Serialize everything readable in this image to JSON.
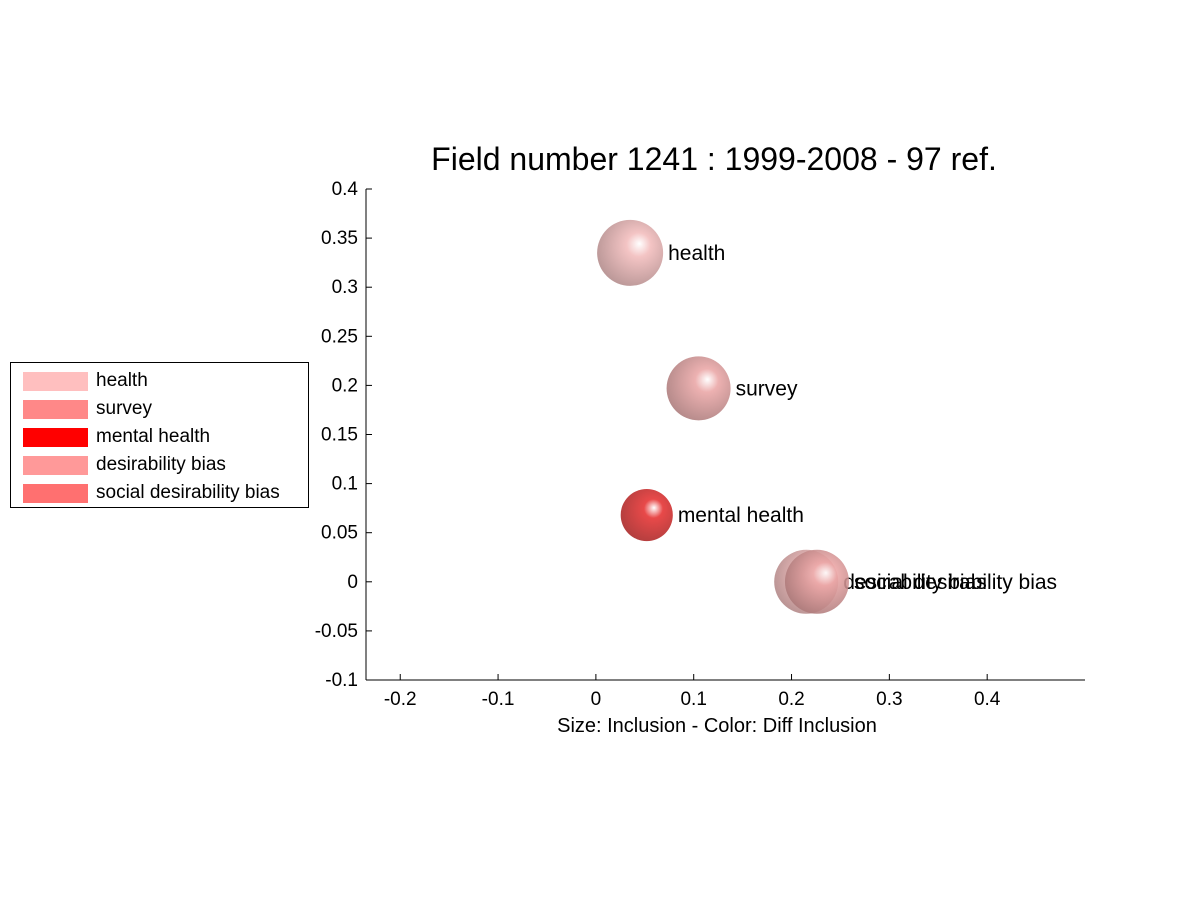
{
  "chart_data": {
    "type": "scatter",
    "title": "Field number 1241 : 1999-2008  - 97 ref.",
    "xlabel": "Size: Inclusion - Color: Diff Inclusion",
    "ylabel": "",
    "xlim": [
      -0.235,
      0.5
    ],
    "ylim": [
      -0.1,
      0.4
    ],
    "xticks": [
      -0.2,
      -0.1,
      0,
      0.1,
      0.2,
      0.3,
      0.4
    ],
    "xtick_labels": [
      "-0.2",
      "-0.1",
      "0",
      "0.1",
      "0.2",
      "0.3",
      "0.4"
    ],
    "yticks": [
      -0.1,
      -0.05,
      0,
      0.05,
      0.1,
      0.15,
      0.2,
      0.25,
      0.3,
      0.35,
      0.4
    ],
    "ytick_labels": [
      "-0.1",
      "-0.05",
      "0",
      "0.05",
      "0.1",
      "0.15",
      "0.2",
      "0.25",
      "0.3",
      "0.35",
      "0.4"
    ],
    "grid": false,
    "legend_position": "left",
    "points": [
      {
        "label": "health",
        "x": 0.035,
        "y": 0.335,
        "size": 1.0,
        "color": "#f2bcbc"
      },
      {
        "label": "survey",
        "x": 0.105,
        "y": 0.197,
        "size": 0.97,
        "color": "#eaa6a6"
      },
      {
        "label": "mental health",
        "x": 0.052,
        "y": 0.068,
        "size": 0.79,
        "color": "#e53030"
      },
      {
        "label": "desirability bias",
        "x": 0.215,
        "y": 0.0,
        "size": 0.97,
        "color": "#f0b6b6"
      },
      {
        "label": "social desirability bias",
        "x": 0.226,
        "y": 0.0,
        "size": 0.97,
        "color": "#eba5a5"
      }
    ]
  },
  "legend": {
    "items": [
      {
        "label": "health",
        "color": "#ffbfbf"
      },
      {
        "label": "survey",
        "color": "#ff8888"
      },
      {
        "label": "mental health",
        "color": "#ff0000"
      },
      {
        "label": "desirability bias",
        "color": "#ff9999"
      },
      {
        "label": "social desirability bias",
        "color": "#ff7070"
      }
    ]
  }
}
